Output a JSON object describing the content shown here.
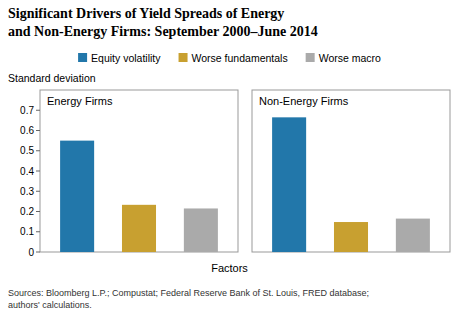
{
  "chart_data": {
    "type": "bar",
    "title": "Significant Drivers of Yield Spreads of Energy\nand Non-Energy Firms: September 2000–June 2014",
    "y_label": "Standard deviation",
    "x_label": "Factors",
    "annotations": [
      "Sources: Bloomberg L.P.; Compustat; Federal Reserve Bank of St. Louis, FRED database;\nauthors' calculations."
    ],
    "categories": [
      "Energy Firms",
      "Non-Energy Firms"
    ],
    "series": [
      {
        "name": "Equity volatility",
        "color": "#2277aa",
        "values": [
          0.55,
          0.665
        ]
      },
      {
        "name": "Worse fundamentals",
        "color": "#c8a030",
        "values": [
          0.233,
          0.148
        ]
      },
      {
        "name": "Worse macro",
        "color": "#aaaaaa",
        "values": [
          0.215,
          0.165
        ]
      }
    ],
    "ylim": [
      0,
      0.8
    ],
    "yticks": [
      0,
      0.1,
      0.2,
      0.3,
      0.4,
      0.5,
      0.6,
      0.7
    ],
    "grid": false,
    "legend": "top"
  }
}
